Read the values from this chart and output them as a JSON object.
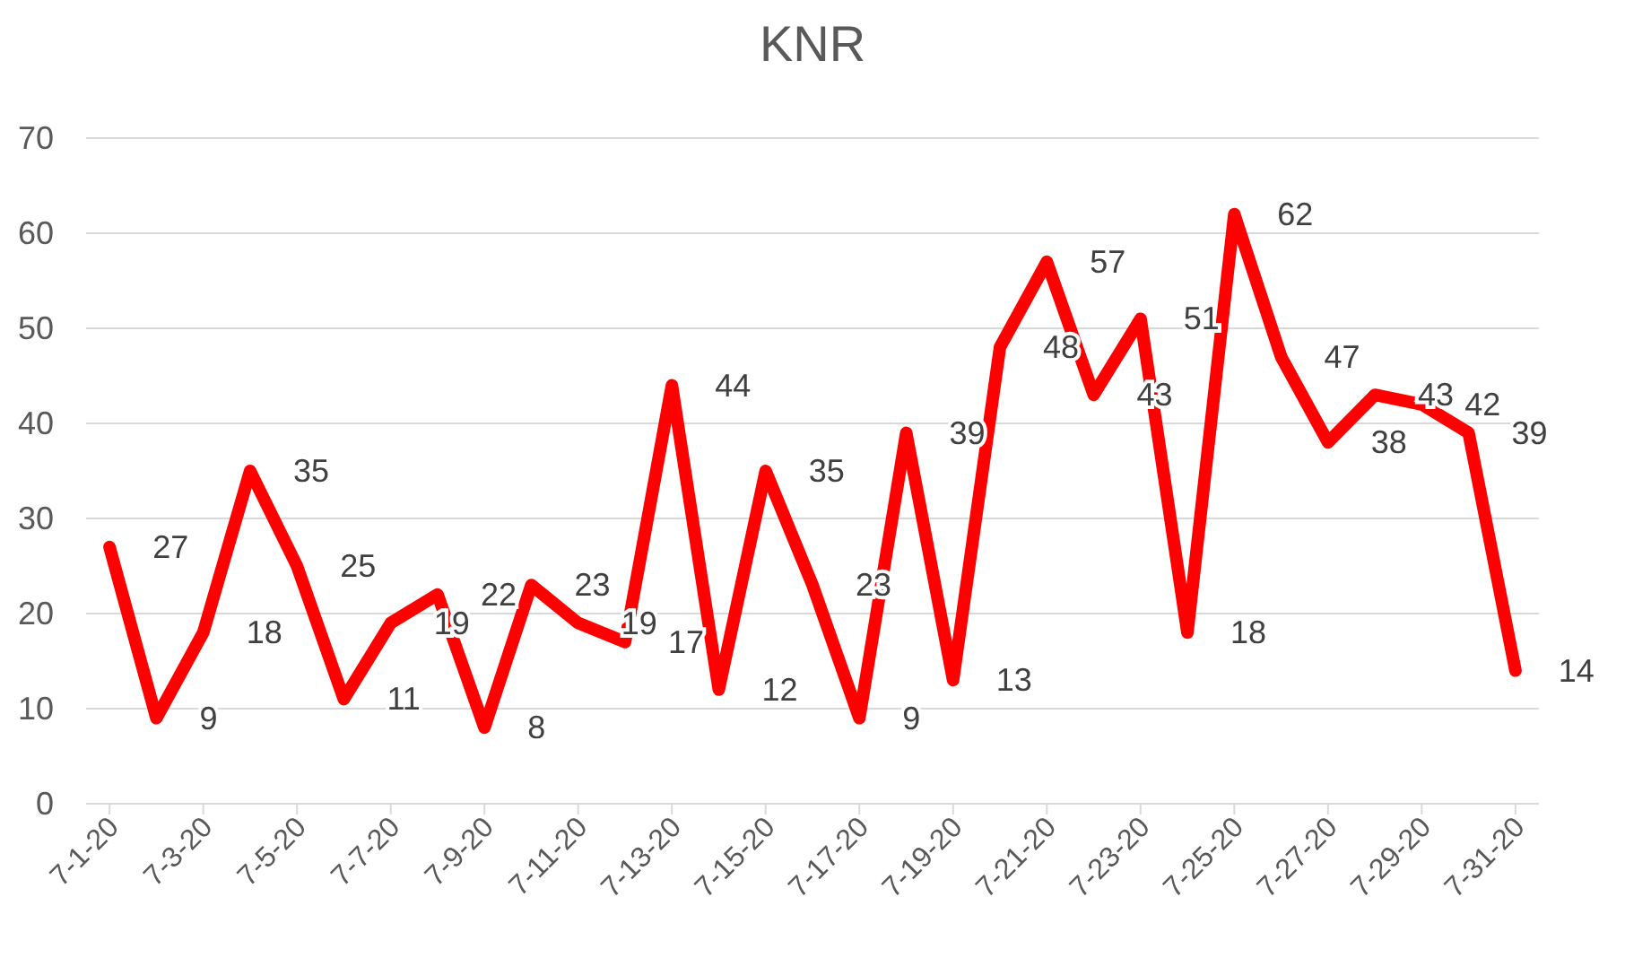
{
  "chart_data": {
    "type": "line",
    "title": "KNR",
    "categories": [
      "7-1-20",
      null,
      "7-3-20",
      null,
      "7-5-20",
      null,
      "7-7-20",
      null,
      "7-9-20",
      null,
      "7-11-20",
      null,
      "7-13-20",
      null,
      "7-15-20",
      null,
      "7-17-20",
      null,
      "7-19-20",
      null,
      "7-21-20",
      null,
      "7-23-20",
      null,
      "7-25-20",
      null,
      "7-27-20",
      null,
      "7-29-20",
      null,
      "7-31-20"
    ],
    "series": [
      {
        "color": "#ff0000",
        "values": [
          27,
          9,
          18,
          35,
          25,
          11,
          19,
          22,
          8,
          23,
          19,
          17,
          44,
          12,
          35,
          23,
          9,
          39,
          13,
          48,
          57,
          43,
          51,
          18,
          62,
          47,
          38,
          43,
          42,
          39,
          14
        ]
      }
    ],
    "ylim": [
      0,
      70
    ],
    "yticks": [
      0,
      10,
      20,
      30,
      40,
      50,
      60,
      70
    ],
    "grid": "y",
    "data_labels": true,
    "marker": "none",
    "line_style": "solid"
  }
}
